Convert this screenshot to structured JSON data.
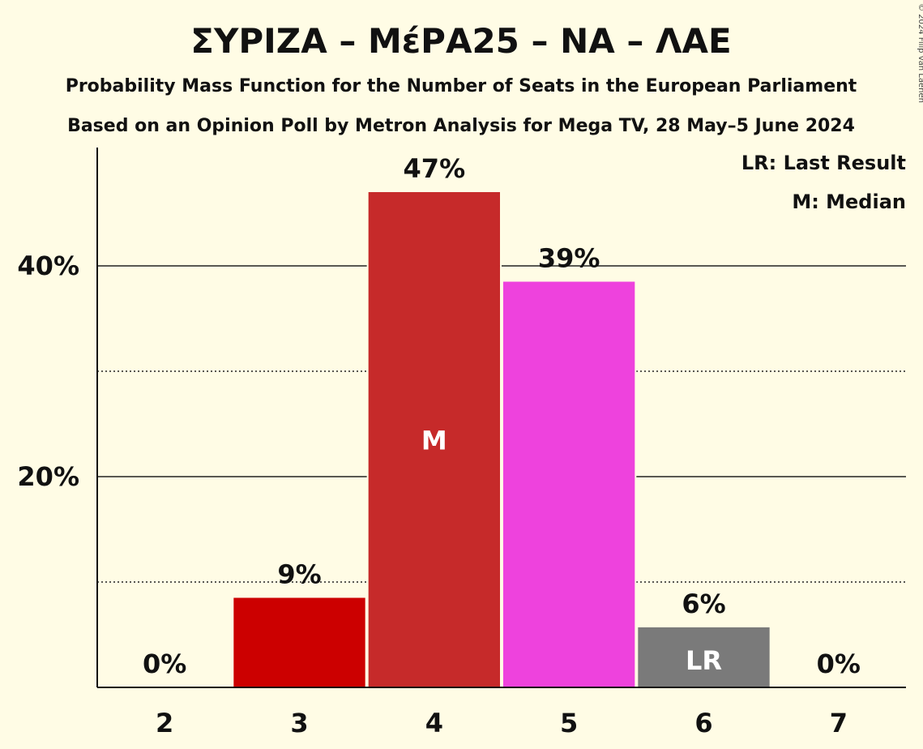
{
  "chart_data": {
    "type": "bar",
    "title": "ΣΥΡΙΖΑ – ΜέΡΑ25 – ΝΑ – ΛΑΕ",
    "subtitle_1": "Probability Mass Function for the Number of Seats in the European Parliament",
    "subtitle_2": "Based on an Opinion Poll by Metron Analysis for Mega TV, 28 May–5 June 2024",
    "credit": "© 2024 Filip van Laenen",
    "xlabel": "",
    "ylabel": "",
    "categories": [
      "2",
      "3",
      "4",
      "5",
      "6",
      "7"
    ],
    "values": [
      0,
      8.5,
      47,
      38.5,
      5.7,
      0
    ],
    "data_labels": [
      "0%",
      "9%",
      "47%",
      "39%",
      "6%",
      "0%"
    ],
    "bar_colors": [
      "#CC0000",
      "#CC0000",
      "#C62A2A",
      "#EE42DD",
      "#7A7A7A",
      "#CC0000"
    ],
    "bar_inner_labels": [
      "",
      "",
      "M",
      "",
      "LR",
      ""
    ],
    "ylim": [
      0,
      50
    ],
    "yticks": [
      20,
      40
    ],
    "ytick_labels": [
      "20%",
      "40%"
    ],
    "minor_gridlines": [
      10,
      30
    ],
    "grid": true,
    "legend_position": "top-right",
    "legend": [
      "LR: Last Result",
      "M: Median"
    ]
  }
}
